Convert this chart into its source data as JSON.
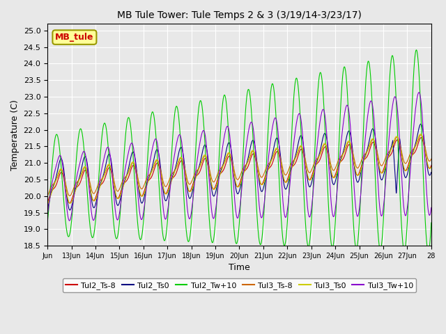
{
  "title": "MB Tule Tower: Tule Temps 2 & 3 (3/19/14-3/23/17)",
  "xlabel": "Time",
  "ylabel": "Temperature (C)",
  "ylim": [
    18.5,
    25.2
  ],
  "xlim": [
    0,
    16
  ],
  "xtick_labels": [
    "Jun",
    "13Jun",
    "14Jun",
    "15Jun",
    "16Jun",
    "17Jun",
    "18Jun",
    "19Jun",
    "20Jun",
    "21Jun",
    "22Jun",
    "23Jun",
    "24Jun",
    "25Jun",
    "26Jun",
    "27Jun",
    "28"
  ],
  "background_color": "#e8e8e8",
  "plot_bg_color": "#e8e8e8",
  "legend_box_color": "#ffff99",
  "legend_box_edge": "#999900",
  "series": {
    "Tul2_Ts-8": {
      "color": "#cc0000"
    },
    "Tul2_Ts0": {
      "color": "#000080"
    },
    "Tul2_Tw+10": {
      "color": "#00cc00"
    },
    "Tul3_Ts-8": {
      "color": "#cc6600"
    },
    "Tul3_Ts0": {
      "color": "#cccc00"
    },
    "Tul3_Tw+10": {
      "color": "#8800cc"
    }
  },
  "inset_label": "MB_tule",
  "inset_color": "#cc0000",
  "inset_bg": "#ffff99",
  "inset_edge": "#999900"
}
